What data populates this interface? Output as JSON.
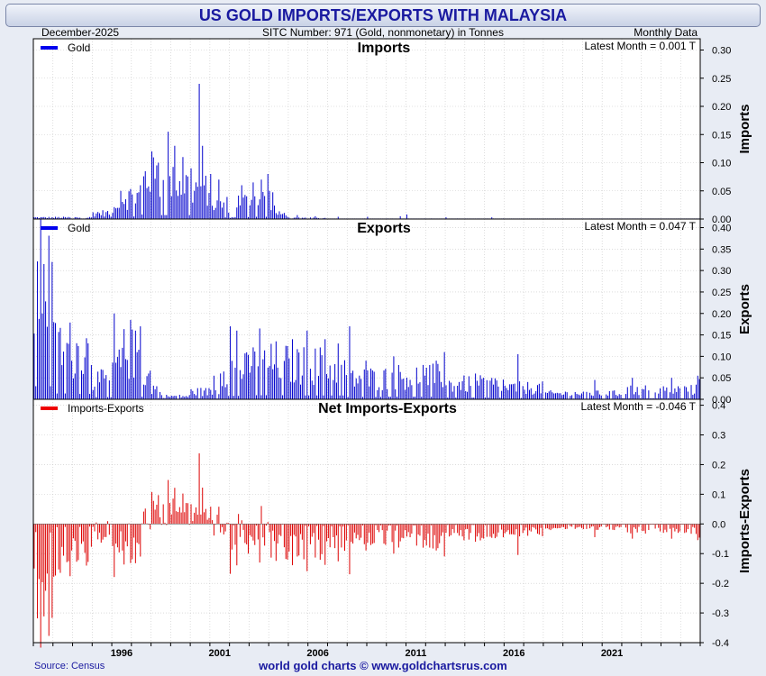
{
  "header": {
    "title": "US GOLD IMPORTS/EXPORTS WITH MALAYSIA",
    "date": "December-2025",
    "sitc": "SITC Number: 971 (Gold, nonmonetary) in Tonnes",
    "frequency": "Monthly Data"
  },
  "footer": {
    "source": "Source: Census",
    "credit": "world gold charts © www.goldchartsrus.com"
  },
  "colors": {
    "blue": "#0000cc",
    "red": "#dd0000",
    "legend_blue": "#0000ee",
    "legend_red": "#ee0000",
    "title_text": "#1a1aa0"
  },
  "chart_data": [
    {
      "type": "bar",
      "title": "Imports",
      "ylabel": "Imports",
      "legend": "Gold",
      "legend_position": "top-left",
      "latest": "Latest Month = 0.001 T",
      "ylim": [
        0,
        0.32
      ],
      "yticks": [
        "0.00",
        "0.05",
        "0.10",
        "0.15",
        "0.20",
        "0.25",
        "0.30"
      ],
      "xlim": [
        1992.0,
        2026.0
      ],
      "x_start": 1992.0,
      "segments": [
        {
          "to": 1995.0,
          "value": 0.003
        },
        {
          "to": 1995.9,
          "value": 0.012
        },
        {
          "to": 1996.0,
          "value": 0.003
        },
        {
          "to": 1996.2,
          "value": 0.02
        },
        {
          "to": 1997.5,
          "value": 0.045
        },
        {
          "to": 1998.5,
          "value": 0.08
        },
        {
          "to": 2000.0,
          "value": 0.07
        },
        {
          "to": 2001.0,
          "value": 0.06
        },
        {
          "to": 2002.0,
          "value": 0.03
        },
        {
          "to": 2002.2,
          "value": 0.003
        },
        {
          "to": 2003.0,
          "value": 0.035
        },
        {
          "to": 2004.3,
          "value": 0.04
        },
        {
          "to": 2005.0,
          "value": 0.01
        },
        {
          "to": 2007.0,
          "value": 0.002
        },
        {
          "to": 2016.0,
          "value": 0.0008
        },
        {
          "to": 2026.0,
          "value": 0.0003
        }
      ],
      "spikes": [
        {
          "x": 1996.4,
          "value": 0.05
        },
        {
          "x": 1997.4,
          "value": 0.06
        },
        {
          "x": 1998.0,
          "value": 0.12
        },
        {
          "x": 1998.3,
          "value": 0.1
        },
        {
          "x": 1998.8,
          "value": 0.155
        },
        {
          "x": 1999.2,
          "value": 0.13
        },
        {
          "x": 1999.6,
          "value": 0.11
        },
        {
          "x": 2000.0,
          "value": 0.09
        },
        {
          "x": 2000.4,
          "value": 0.24
        },
        {
          "x": 2000.6,
          "value": 0.13
        },
        {
          "x": 2001.0,
          "value": 0.08
        },
        {
          "x": 2001.4,
          "value": 0.07
        },
        {
          "x": 2002.6,
          "value": 0.06
        },
        {
          "x": 2003.2,
          "value": 0.065
        },
        {
          "x": 2003.9,
          "value": 0.08
        },
        {
          "x": 2003.6,
          "value": 0.07
        },
        {
          "x": 2004.0,
          "value": 0.05
        },
        {
          "x": 2005.4,
          "value": 0.007
        },
        {
          "x": 2006.3,
          "value": 0.005
        },
        {
          "x": 2007.5,
          "value": 0.004
        },
        {
          "x": 2009.0,
          "value": 0.004
        },
        {
          "x": 2010.7,
          "value": 0.005
        },
        {
          "x": 2011.0,
          "value": 0.008
        },
        {
          "x": 2013.0,
          "value": 0.003
        },
        {
          "x": 2015.3,
          "value": 0.003
        }
      ],
      "latest_value": 0.001
    },
    {
      "type": "bar",
      "title": "Exports",
      "ylabel": "Exports",
      "legend": "Gold",
      "legend_position": "top-left",
      "latest": "Latest Month = 0.047 T",
      "ylim": [
        0,
        0.42
      ],
      "yticks": [
        "0.00",
        "0.05",
        "0.10",
        "0.15",
        "0.20",
        "0.25",
        "0.30",
        "0.35",
        "0.40"
      ],
      "xlim": [
        1992.0,
        2026.0
      ],
      "x_start": 1992.0,
      "segments": [
        {
          "to": 1993.0,
          "value": 0.305
        },
        {
          "to": 1994.0,
          "value": 0.135
        },
        {
          "to": 1995.0,
          "value": 0.125
        },
        {
          "to": 1996.0,
          "value": 0.05
        },
        {
          "to": 1996.5,
          "value": 0.09
        },
        {
          "to": 1997.5,
          "value": 0.12
        },
        {
          "to": 1998.0,
          "value": 0.06
        },
        {
          "to": 1998.5,
          "value": 0.03
        },
        {
          "to": 2000.0,
          "value": 0.008
        },
        {
          "to": 2001.5,
          "value": 0.02
        },
        {
          "to": 2003.0,
          "value": 0.08
        },
        {
          "to": 2005.0,
          "value": 0.095
        },
        {
          "to": 2008.0,
          "value": 0.09
        },
        {
          "to": 2010.0,
          "value": 0.055
        },
        {
          "to": 2013.0,
          "value": 0.06
        },
        {
          "to": 2016.0,
          "value": 0.04
        },
        {
          "to": 2018.0,
          "value": 0.03
        },
        {
          "to": 2020.0,
          "value": 0.015
        },
        {
          "to": 2022.0,
          "value": 0.015
        },
        {
          "to": 2026.0,
          "value": 0.025
        }
      ],
      "spikes": [
        {
          "x": 1992.9,
          "value": 0.32
        },
        {
          "x": 1992.5,
          "value": 0.315
        },
        {
          "x": 1996.1,
          "value": 0.2
        },
        {
          "x": 1996.9,
          "value": 0.185
        },
        {
          "x": 1997.2,
          "value": 0.16
        },
        {
          "x": 1997.4,
          "value": 0.17
        },
        {
          "x": 2001.2,
          "value": 0.055
        },
        {
          "x": 2002.0,
          "value": 0.17
        },
        {
          "x": 2002.3,
          "value": 0.16
        },
        {
          "x": 2003.5,
          "value": 0.165
        },
        {
          "x": 2004.3,
          "value": 0.135
        },
        {
          "x": 2005.2,
          "value": 0.14
        },
        {
          "x": 2005.9,
          "value": 0.16
        },
        {
          "x": 2006.8,
          "value": 0.14
        },
        {
          "x": 2007.5,
          "value": 0.13
        },
        {
          "x": 2008.1,
          "value": 0.17
        },
        {
          "x": 2008.9,
          "value": 0.09
        },
        {
          "x": 2010.3,
          "value": 0.1
        },
        {
          "x": 2011.8,
          "value": 0.08
        },
        {
          "x": 2012.5,
          "value": 0.09
        },
        {
          "x": 2012.9,
          "value": 0.11
        },
        {
          "x": 2014.5,
          "value": 0.06
        },
        {
          "x": 2016.7,
          "value": 0.105
        },
        {
          "x": 2020.6,
          "value": 0.045
        },
        {
          "x": 2022.5,
          "value": 0.05
        },
        {
          "x": 2024.5,
          "value": 0.05
        },
        {
          "x": 2025.8,
          "value": 0.055
        }
      ],
      "latest_value": 0.047
    },
    {
      "type": "bar",
      "title": "Net Imports-Exports",
      "ylabel": "Imports-Exports",
      "legend": "Imports-Exports",
      "legend_position": "top-left",
      "latest": "Latest Month = -0.046 T",
      "ylim": [
        -0.4,
        0.42
      ],
      "yticks": [
        "-0.4",
        "-0.3",
        "-0.2",
        "-0.1",
        "0.0",
        "0.1",
        "0.2",
        "0.3",
        "0.4"
      ],
      "xlim": [
        1992.0,
        2026.0
      ],
      "x_ticks": [
        "1996",
        "2001",
        "2006",
        "2011",
        "2016",
        "2021"
      ]
    }
  ]
}
